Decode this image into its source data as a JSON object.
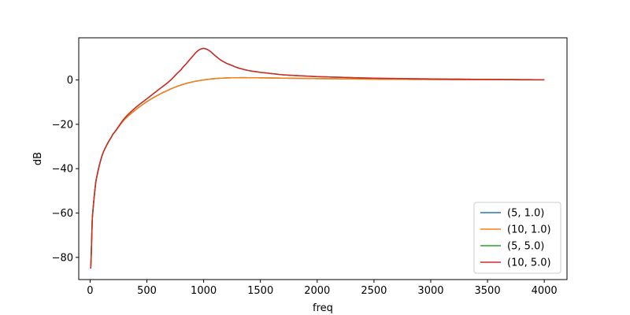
{
  "chart_data": {
    "type": "line",
    "title": "",
    "xlabel": "freq",
    "ylabel": "dB",
    "xlim": [
      -100,
      4200
    ],
    "ylim": [
      -90,
      19
    ],
    "xticks": [
      0,
      500,
      1000,
      1500,
      2000,
      2500,
      3000,
      3500,
      4000
    ],
    "xtick_labels": [
      "0",
      "500",
      "1000",
      "1500",
      "2000",
      "2500",
      "3000",
      "3500",
      "4000"
    ],
    "yticks": [
      -80,
      -60,
      -40,
      -20,
      0
    ],
    "ytick_labels": [
      "−80",
      "−60",
      "−40",
      "−20",
      "0"
    ],
    "grid": false,
    "legend_position": "lower-right",
    "series": [
      {
        "name": "(5, 1.0)",
        "color": "#1f77b4",
        "x": [
          5,
          20,
          50,
          100,
          150,
          200,
          300,
          400,
          500,
          600,
          700,
          800,
          900,
          1000,
          1100,
          1200,
          1300,
          1400,
          1500,
          1700,
          2000,
          2500,
          3000,
          3500,
          4000
        ],
        "y": [
          -85,
          -62,
          -46,
          -35,
          -29,
          -24.5,
          -18,
          -13.5,
          -9.8,
          -6.8,
          -4.3,
          -2.3,
          -0.9,
          0,
          0.6,
          0.9,
          1.0,
          1.0,
          0.95,
          0.8,
          0.6,
          0.35,
          0.2,
          0.1,
          0.05
        ]
      },
      {
        "name": "(10, 1.0)",
        "color": "#ff7f0e",
        "x": [
          5,
          20,
          50,
          100,
          150,
          200,
          300,
          400,
          500,
          600,
          700,
          800,
          900,
          1000,
          1100,
          1200,
          1300,
          1400,
          1500,
          1700,
          2000,
          2500,
          3000,
          3500,
          4000
        ],
        "y": [
          -85,
          -62,
          -46,
          -35,
          -29,
          -24.5,
          -18,
          -13.5,
          -9.8,
          -6.8,
          -4.3,
          -2.3,
          -0.9,
          0,
          0.6,
          0.9,
          1.0,
          1.0,
          0.95,
          0.8,
          0.6,
          0.35,
          0.2,
          0.1,
          0.05
        ]
      },
      {
        "name": "(5, 5.0)",
        "color": "#2ca02c",
        "x": [
          5,
          20,
          50,
          100,
          150,
          200,
          300,
          400,
          500,
          600,
          700,
          800,
          850,
          900,
          950,
          1000,
          1050,
          1100,
          1150,
          1200,
          1300,
          1400,
          1500,
          1700,
          2000,
          2500,
          3000,
          3500,
          4000
        ],
        "y": [
          -85,
          -62,
          -46,
          -35,
          -29,
          -24.5,
          -17.5,
          -12.5,
          -8.5,
          -4.5,
          -0.5,
          4.5,
          7.5,
          10.5,
          13.2,
          14.2,
          13.2,
          11.0,
          9.0,
          7.5,
          5.5,
          4.2,
          3.4,
          2.3,
          1.5,
          0.8,
          0.45,
          0.25,
          0.1
        ]
      },
      {
        "name": "(10, 5.0)",
        "color": "#d62728",
        "x": [
          5,
          20,
          50,
          100,
          150,
          200,
          300,
          400,
          500,
          600,
          700,
          800,
          850,
          900,
          950,
          1000,
          1050,
          1100,
          1150,
          1200,
          1300,
          1400,
          1500,
          1700,
          2000,
          2500,
          3000,
          3500,
          4000
        ],
        "y": [
          -85,
          -62,
          -46,
          -35,
          -29,
          -24.5,
          -17.5,
          -12.5,
          -8.5,
          -4.5,
          -0.5,
          4.5,
          7.5,
          10.5,
          13.2,
          14.2,
          13.2,
          11.0,
          9.0,
          7.5,
          5.5,
          4.2,
          3.4,
          2.3,
          1.5,
          0.8,
          0.45,
          0.25,
          0.1
        ]
      }
    ]
  }
}
